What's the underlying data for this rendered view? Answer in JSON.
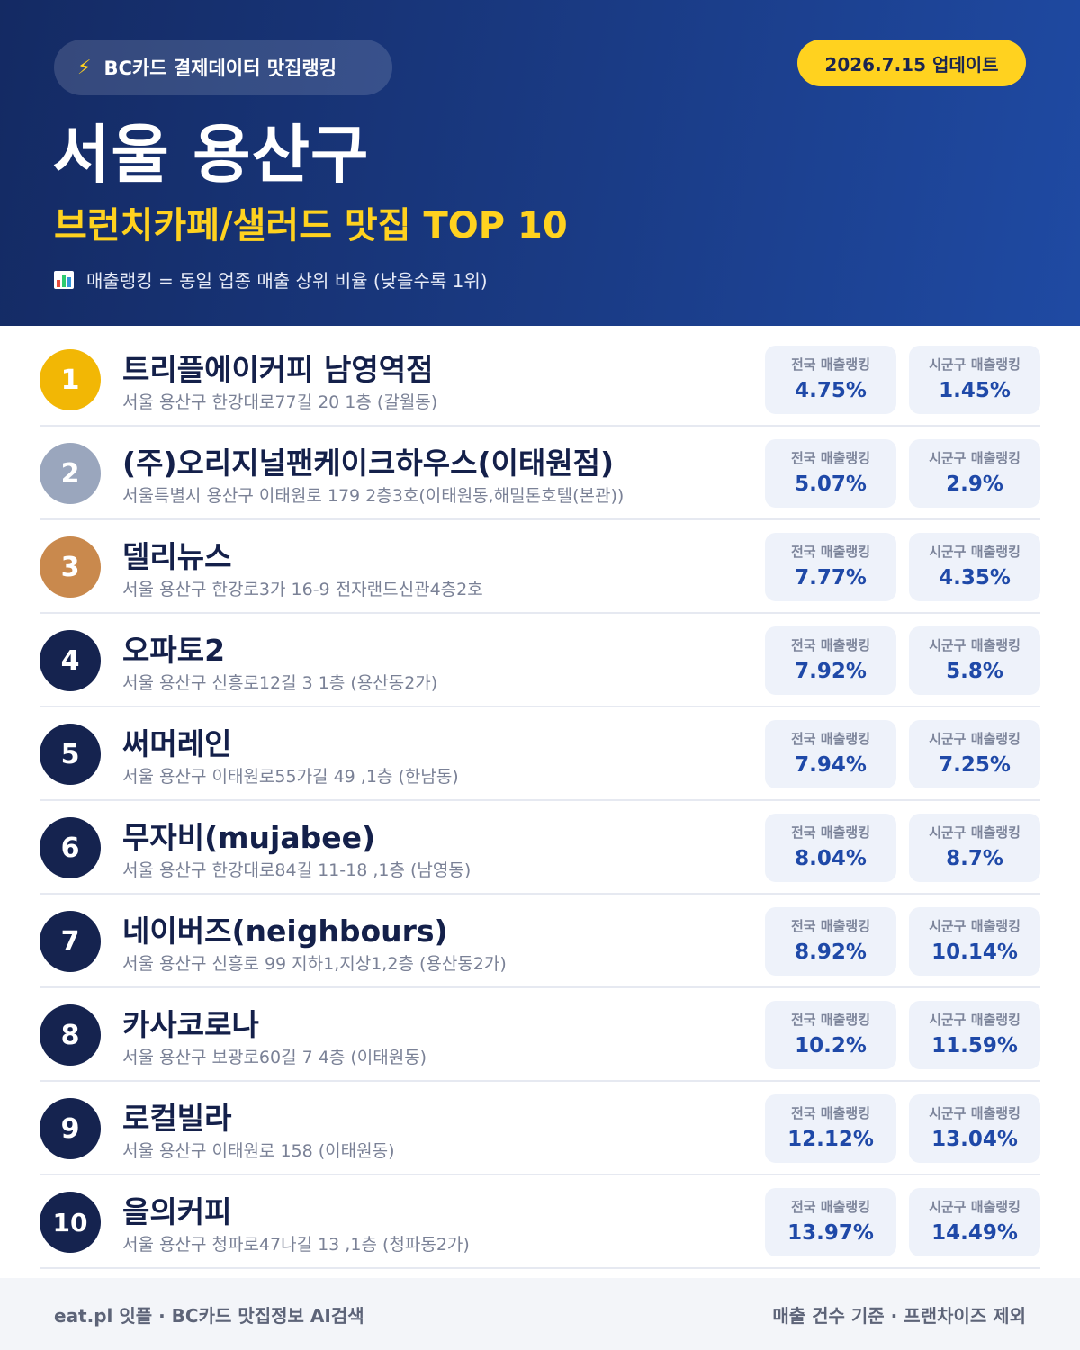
{
  "header": {
    "source_label": "BC카드 결제데이터 맛집랭킹",
    "update_label": "2026.7.15 업데이트",
    "title": "서울 용산구",
    "subtitle": "브런치카페/샐러드 맛집 TOP 10",
    "note": "매출랭킹 = 동일 업종 매출 상위 비율 (낮을수록 1위)"
  },
  "badge_labels": {
    "national": "전국 매출랭킹",
    "local": "시군구 매출랭킹"
  },
  "items": [
    {
      "rank": "1",
      "name": "트리플에이커피 남영역점",
      "address": "서울 용산구 한강대로77길 20 1층 (갈월동)",
      "national": "4.75%",
      "local": "1.45%"
    },
    {
      "rank": "2",
      "name": "(주)오리지널팬케이크하우스(이태원점)",
      "address": "서울특별시 용산구 이태원로 179 2층3호(이태원동,해밀톤호텔(본관))",
      "national": "5.07%",
      "local": "2.9%"
    },
    {
      "rank": "3",
      "name": "델리뉴스",
      "address": "서울 용산구 한강로3가 16-9 전자랜드신관4층2호",
      "national": "7.77%",
      "local": "4.35%"
    },
    {
      "rank": "4",
      "name": "오파토2",
      "address": "서울 용산구 신흥로12길 3 1층 (용산동2가)",
      "national": "7.92%",
      "local": "5.8%"
    },
    {
      "rank": "5",
      "name": "써머레인",
      "address": "서울 용산구 이태원로55가길 49 ,1층 (한남동)",
      "national": "7.94%",
      "local": "7.25%"
    },
    {
      "rank": "6",
      "name": "무자비(mujabee)",
      "address": "서울 용산구 한강대로84길 11-18 ,1층 (남영동)",
      "national": "8.04%",
      "local": "8.7%"
    },
    {
      "rank": "7",
      "name": "네이버즈(neighbours)",
      "address": "서울 용산구 신흥로 99 지하1,지상1,2층 (용산동2가)",
      "national": "8.92%",
      "local": "10.14%"
    },
    {
      "rank": "8",
      "name": "카사코로나",
      "address": "서울 용산구 보광로60길 7 4층 (이태원동)",
      "national": "10.2%",
      "local": "11.59%"
    },
    {
      "rank": "9",
      "name": "로컬빌라",
      "address": "서울 용산구 이태원로 158 (이태원동)",
      "national": "12.12%",
      "local": "13.04%"
    },
    {
      "rank": "10",
      "name": "을의커피",
      "address": "서울 용산구 청파로47나길 13 ,1층 (청파동2가)",
      "national": "13.97%",
      "local": "14.49%"
    }
  ],
  "footer": {
    "left": "eat.pl 잇플 · BC카드 맛집정보 AI검색",
    "right": "매출 건수 기준 · 프랜차이즈 제외"
  },
  "colors": {
    "header_bg": "#1a3b85",
    "accent_yellow": "#ffd21f",
    "rank_gold": "#f2b705",
    "rank_silver": "#9aa6bd",
    "rank_bronze": "#c9894d",
    "rank_default": "#15234f",
    "badge_value": "#1f49a8"
  },
  "icons": {
    "source_pill": "lightning-bolt-icon",
    "note": "bar-chart-icon"
  }
}
